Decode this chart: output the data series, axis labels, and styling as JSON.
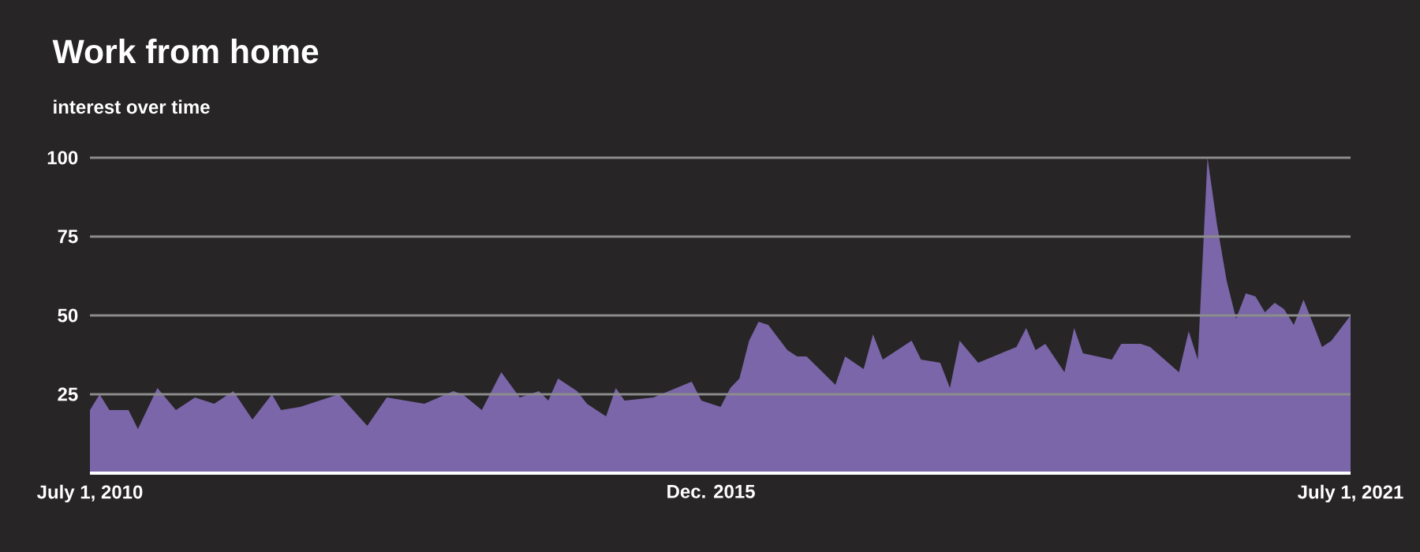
{
  "chart_data": {
    "type": "area",
    "title": "Work from home",
    "subtitle": "interest over time",
    "x": [
      "2010-07",
      "2010-08",
      "2010-09",
      "2010-11",
      "2010-12",
      "2011-02",
      "2011-04",
      "2011-06",
      "2011-08",
      "2011-10",
      "2011-12",
      "2012-02",
      "2012-03",
      "2012-05",
      "2012-09",
      "2012-12",
      "2013-02",
      "2013-06",
      "2013-09",
      "2013-10",
      "2013-12",
      "2014-02",
      "2014-04",
      "2014-06",
      "2014-07",
      "2014-08",
      "2014-10",
      "2014-11",
      "2015-01",
      "2015-02",
      "2015-03",
      "2015-06",
      "2015-10",
      "2015-11",
      "2016-01",
      "2016-02",
      "2016-03",
      "2016-04",
      "2016-05",
      "2016-06",
      "2016-08",
      "2016-09",
      "2016-10",
      "2016-11",
      "2017-01",
      "2017-02",
      "2017-04",
      "2017-05",
      "2017-06",
      "2017-09",
      "2017-10",
      "2017-12",
      "2018-01",
      "2018-02",
      "2018-04",
      "2018-08",
      "2018-09",
      "2018-10",
      "2018-11",
      "2019-01",
      "2019-02",
      "2019-03",
      "2019-06",
      "2019-07",
      "2019-09",
      "2019-10",
      "2020-01",
      "2020-02",
      "2020-03",
      "2020-04",
      "2020-05",
      "2020-06",
      "2020-07",
      "2020-08",
      "2020-09",
      "2020-10",
      "2020-11",
      "2020-12",
      "2021-01",
      "2021-02",
      "2021-03",
      "2021-04",
      "2021-05",
      "2021-07"
    ],
    "values": [
      20,
      25,
      20,
      20,
      14,
      27,
      20,
      24,
      22,
      26,
      17,
      25,
      20,
      21,
      25,
      15,
      24,
      22,
      26,
      25,
      20,
      32,
      24,
      26,
      23,
      30,
      26,
      22,
      18,
      27,
      23,
      24,
      29,
      23,
      21,
      27,
      30,
      42,
      48,
      47,
      39,
      37,
      37,
      34,
      28,
      37,
      33,
      44,
      36,
      42,
      36,
      35,
      27,
      42,
      35,
      40,
      46,
      39,
      41,
      32,
      46,
      38,
      36,
      41,
      41,
      40,
      32,
      45,
      36,
      100,
      79,
      61,
      49,
      57,
      56,
      51,
      54,
      52,
      47,
      55,
      48,
      40,
      42,
      50
    ],
    "color": "#7a66a8",
    "xlim": [
      "2010-07-01",
      "2021-07-01"
    ],
    "xticks": [
      {
        "value": "2010-07-01",
        "label": "July 1, 2010"
      },
      {
        "value": "2015-12",
        "label": "Dec. 2015"
      },
      {
        "value": "2021-07-01",
        "label": "July 1, 2021"
      }
    ],
    "ylim": [
      0,
      100
    ],
    "yticks": [
      25,
      50,
      75,
      100
    ],
    "grid": "y"
  }
}
